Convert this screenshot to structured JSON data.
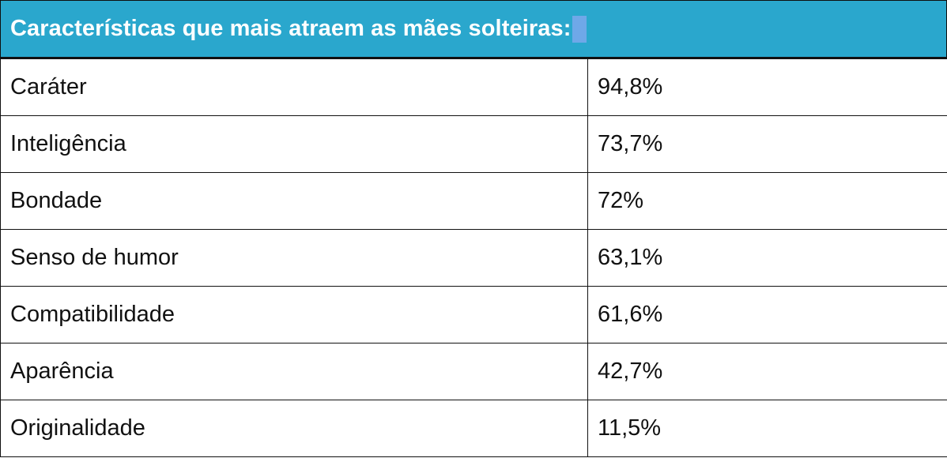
{
  "table": {
    "title": "Características que mais atraem as mães solteiras:",
    "rows": [
      {
        "label": "Caráter",
        "value": "94,8%"
      },
      {
        "label": "Inteligência",
        "value": "73,7%"
      },
      {
        "label": "Bondade",
        "value": "72%"
      },
      {
        "label": "Senso de humor",
        "value": "63,1%"
      },
      {
        "label": "Compatibilidade",
        "value": "61,6%"
      },
      {
        "label": "Aparência",
        "value": "42,7%"
      },
      {
        "label": "Originalidade",
        "value": "11,5%"
      }
    ]
  },
  "colors": {
    "header_background": "#2aa7cd",
    "header_text": "#ffffff",
    "selection_highlight": "#6fa8e8",
    "border": "#111111"
  }
}
